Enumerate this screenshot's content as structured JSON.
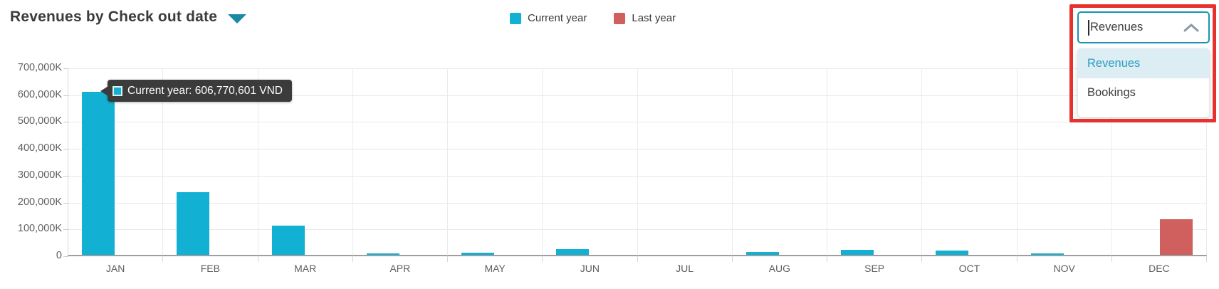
{
  "header": {
    "title": "Revenues by Check out date"
  },
  "legend": [
    {
      "label": "Current year",
      "color": "#12b0d3"
    },
    {
      "label": "Last year",
      "color": "#d0605e"
    }
  ],
  "tooltip": {
    "text": "Current year: 606,770,601 VND",
    "marker_color": "#12b0d3"
  },
  "metric_dropdown": {
    "value": "Revenues",
    "options": [
      {
        "label": "Revenues",
        "selected": true
      },
      {
        "label": "Bookings",
        "selected": false
      }
    ]
  },
  "colors": {
    "current_year": "#12b0d3",
    "last_year": "#d0605e",
    "title_caret": "#1b89a6",
    "dropdown_border": "#1a93b2",
    "annotation_box": "#e6312e",
    "selected_option_bg": "#dcedf4",
    "selected_option_text": "#2b9cbd"
  },
  "chart_data": {
    "type": "bar",
    "title": "Revenues by Check out date",
    "unit": "K VND (thousands of VND)",
    "categories": [
      "JAN",
      "FEB",
      "MAR",
      "APR",
      "MAY",
      "JUN",
      "JUL",
      "AUG",
      "SEP",
      "OCT",
      "NOV",
      "DEC"
    ],
    "series": [
      {
        "name": "Current year",
        "color": "#12b0d3",
        "values": [
          606770.6,
          233000,
          109000,
          6000,
          9000,
          20000,
          0,
          10000,
          19000,
          16000,
          5000,
          0
        ]
      },
      {
        "name": "Last year",
        "color": "#d0605e",
        "values": [
          0,
          0,
          0,
          0,
          0,
          0,
          0,
          0,
          0,
          0,
          0,
          133000
        ]
      }
    ],
    "ylim": [
      0,
      700000
    ],
    "yticks": [
      "700,000K",
      "600,000K",
      "500,000K",
      "400,000K",
      "300,000K",
      "200,000K",
      "100,000K",
      "0"
    ],
    "grid": true,
    "legend_position": "top-center",
    "highlighted_point": {
      "series": "Current year",
      "category": "JAN",
      "value_text": "606,770,601 VND"
    }
  }
}
